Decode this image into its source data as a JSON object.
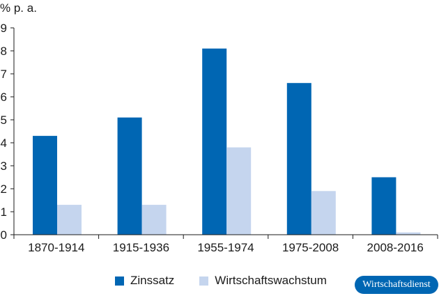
{
  "chart_data": {
    "type": "bar",
    "unit_label": "% p. a.",
    "categories": [
      "1870-1914",
      "1915-1936",
      "1955-1974",
      "1975-2008",
      "2008-2016"
    ],
    "series": [
      {
        "name": "Zinssatz",
        "color": "#0066b3",
        "values": [
          4.3,
          5.1,
          8.1,
          6.6,
          2.5
        ]
      },
      {
        "name": "Wirtschaftswachstum",
        "color": "#c5d5ee",
        "values": [
          1.3,
          1.3,
          3.8,
          1.9,
          0.1
        ]
      }
    ],
    "y_ticks": [
      0,
      1,
      2,
      3,
      4,
      5,
      6,
      7,
      8,
      9
    ],
    "ylim": [
      0,
      9
    ],
    "grid": false,
    "legend_position": "bottom"
  },
  "legend": {
    "items": [
      {
        "label": "Zinssatz",
        "color": "#0066b3"
      },
      {
        "label": "Wirtschaftswachstum",
        "color": "#c5d5ee"
      }
    ]
  },
  "logo": {
    "text": "Wirtschaftsdienst",
    "color": "#0066b3"
  }
}
